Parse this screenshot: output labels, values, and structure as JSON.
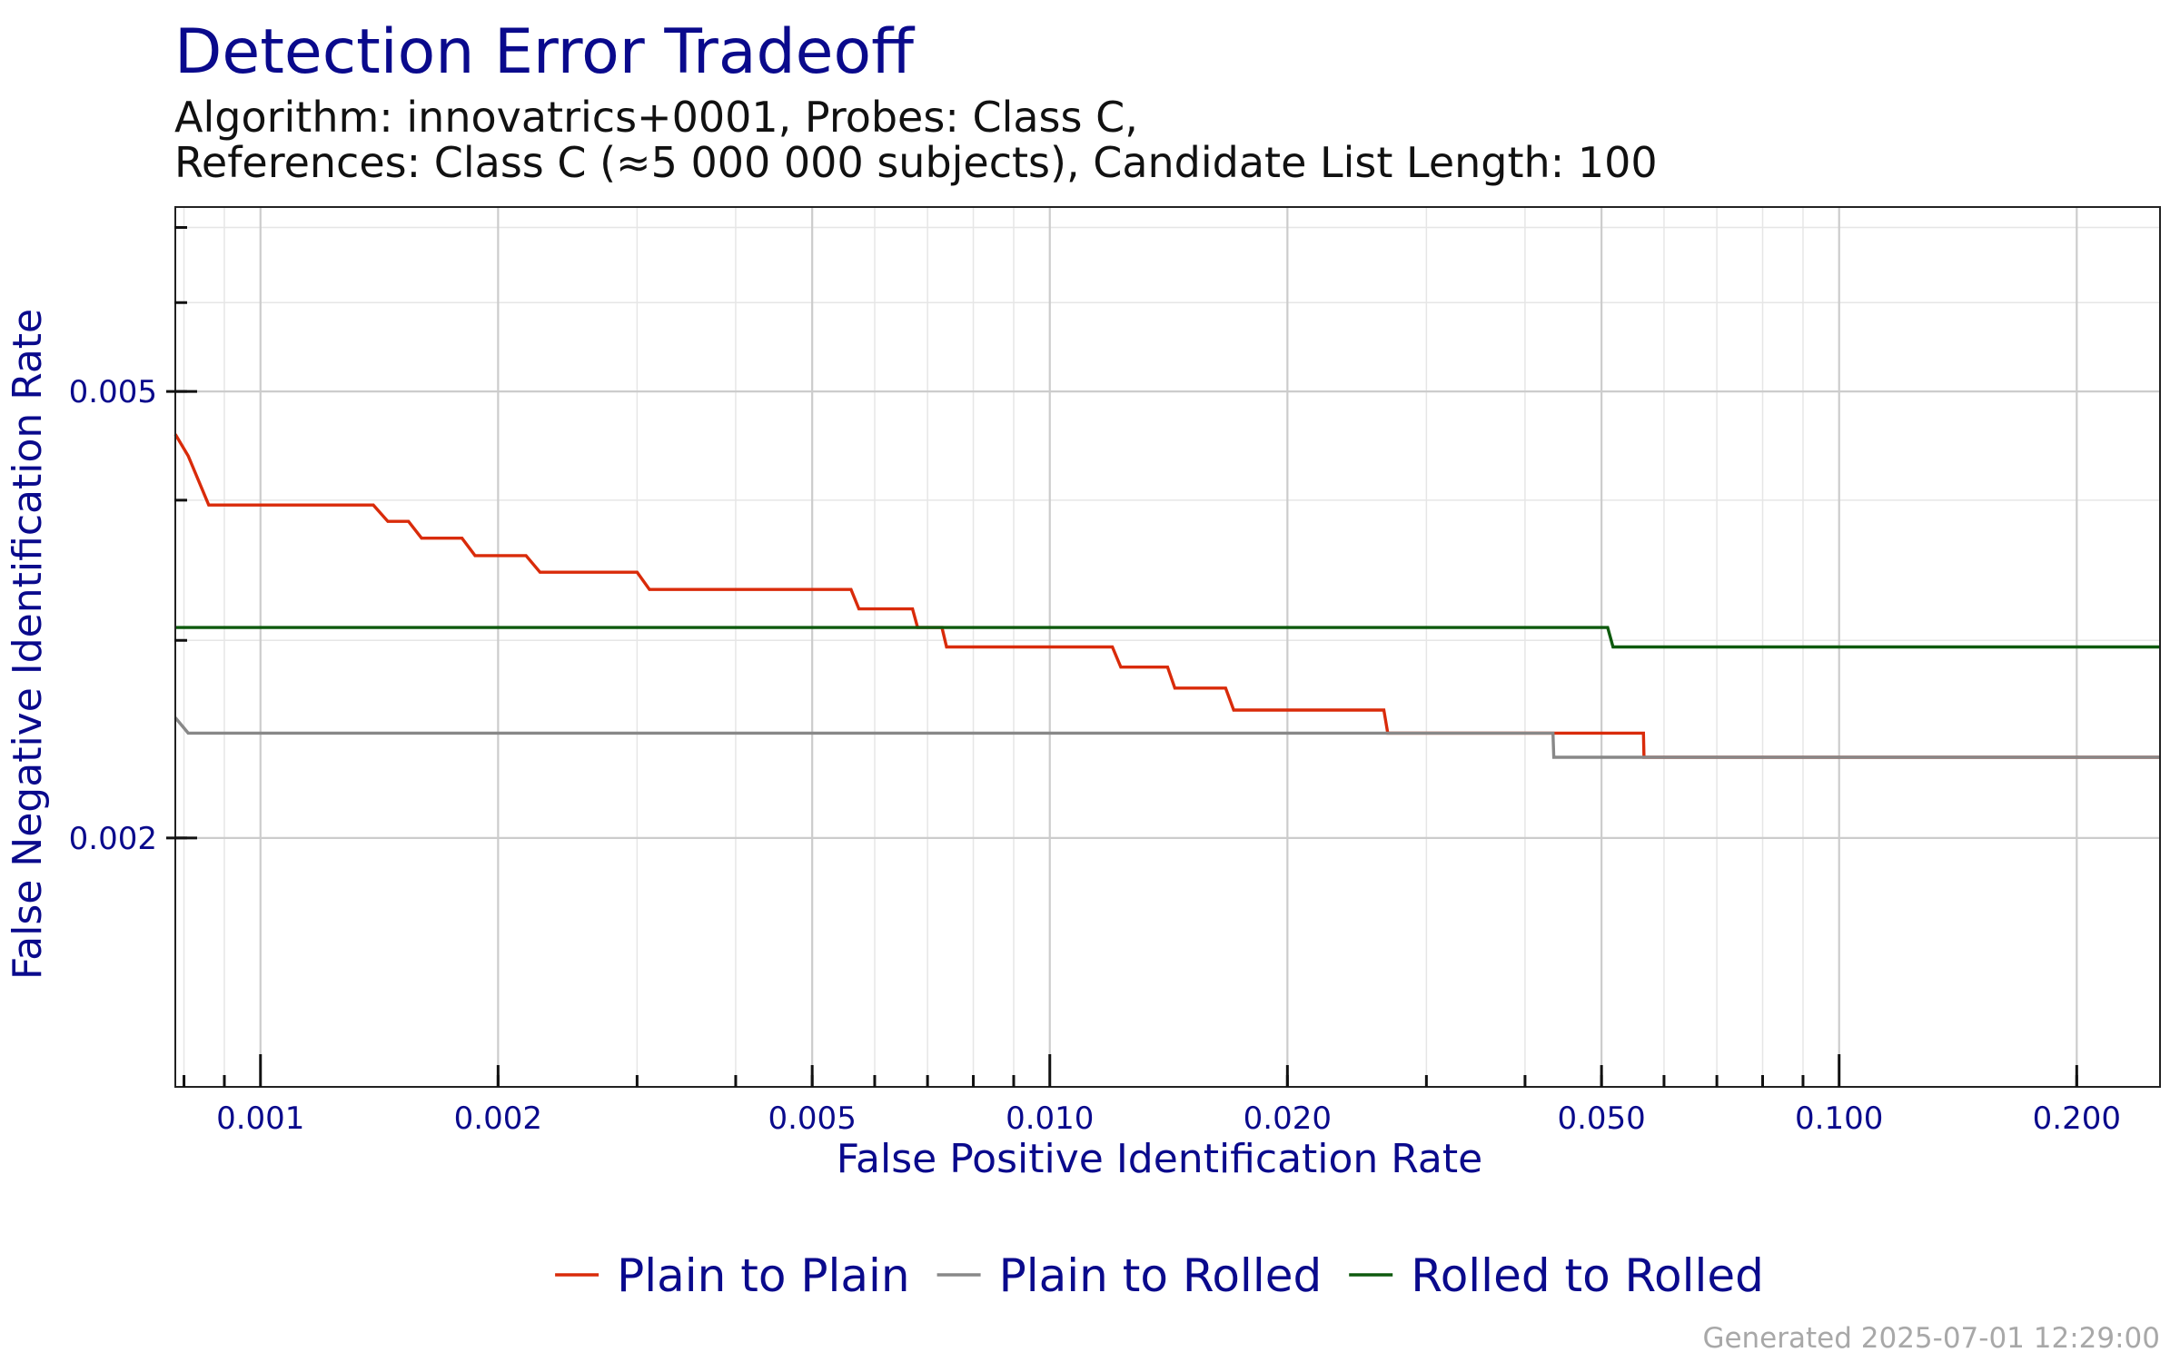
{
  "title": "Detection Error Tradeoff",
  "subtitle_line1": "Algorithm: innovatrics+0001, Probes: Class C,",
  "subtitle_line2": "References: Class C (≈5 000 000 subjects), Candidate List Length: 100",
  "footer": "Generated 2025-07-01 12:29:00",
  "colors": {
    "title": "#0a0a8c",
    "grid": "#cccccc",
    "minor_grid": "#e6e6e6",
    "axis_text": "#0a0a8c"
  },
  "chart_data": {
    "type": "line",
    "xlabel": "False Positive Identification Rate",
    "ylabel": "False Negative Identification Rate",
    "x_scale": "log",
    "y_scale": "log",
    "xlim": [
      0.00078,
      0.255
    ],
    "ylim": [
      0.0012,
      0.0073
    ],
    "x_ticks": [
      0.001,
      0.002,
      0.005,
      0.01,
      0.02,
      0.05,
      0.1,
      0.2
    ],
    "x_tick_labels": [
      "0.001",
      "0.002",
      "0.005",
      "0.010",
      "0.020",
      "0.050",
      "0.100",
      "0.200"
    ],
    "y_ticks": [
      0.002,
      0.005
    ],
    "y_tick_labels": [
      "0.002",
      "0.005"
    ],
    "grid": true,
    "legend_position": "bottom",
    "series": [
      {
        "name": "Plain to Plain",
        "color": "#d92b0a",
        "points": [
          [
            0.00078,
            0.00458
          ],
          [
            0.00081,
            0.00438
          ],
          [
            0.00086,
            0.00396
          ],
          [
            0.00139,
            0.00396
          ],
          [
            0.00145,
            0.00383
          ],
          [
            0.00154,
            0.00383
          ],
          [
            0.0016,
            0.0037
          ],
          [
            0.0018,
            0.0037
          ],
          [
            0.00187,
            0.00357
          ],
          [
            0.00217,
            0.00357
          ],
          [
            0.00226,
            0.00345
          ],
          [
            0.003,
            0.00345
          ],
          [
            0.00311,
            0.00333
          ],
          [
            0.0056,
            0.00333
          ],
          [
            0.00573,
            0.0032
          ],
          [
            0.0067,
            0.0032
          ],
          [
            0.0068,
            0.00308
          ],
          [
            0.0073,
            0.00308
          ],
          [
            0.0074,
            0.00296
          ],
          [
            0.012,
            0.00296
          ],
          [
            0.0123,
            0.00284
          ],
          [
            0.0141,
            0.00284
          ],
          [
            0.0144,
            0.00272
          ],
          [
            0.0167,
            0.00272
          ],
          [
            0.0171,
            0.0026
          ],
          [
            0.0265,
            0.0026
          ],
          [
            0.0268,
            0.00248
          ],
          [
            0.0565,
            0.00248
          ],
          [
            0.0566,
            0.00236
          ],
          [
            0.255,
            0.00236
          ]
        ]
      },
      {
        "name": "Plain to Rolled",
        "color": "#888888",
        "points": [
          [
            0.00078,
            0.00256
          ],
          [
            0.00081,
            0.00248
          ],
          [
            0.0434,
            0.00248
          ],
          [
            0.0435,
            0.00236
          ],
          [
            0.255,
            0.00236
          ]
        ]
      },
      {
        "name": "Rolled to Rolled",
        "color": "#0e5a0e",
        "points": [
          [
            0.00078,
            0.00308
          ],
          [
            0.0509,
            0.00308
          ],
          [
            0.0517,
            0.00296
          ],
          [
            0.255,
            0.00296
          ]
        ]
      }
    ]
  }
}
